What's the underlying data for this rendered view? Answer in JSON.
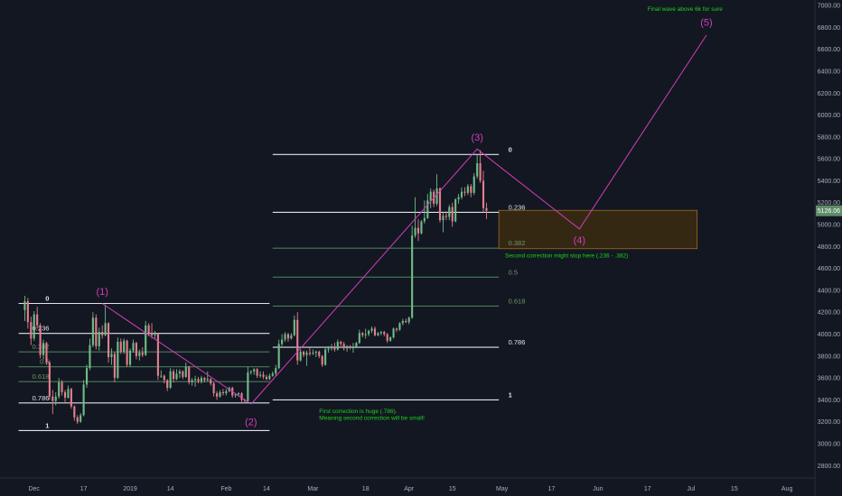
{
  "chart_data": {
    "type": "candlestick",
    "instrument": "BTC",
    "price_axis": {
      "ticks": [
        "2800.00",
        "3000.00",
        "3200.00",
        "3400.00",
        "3600.00",
        "3800.00",
        "4000.00",
        "4200.00",
        "4400.00",
        "4600.00",
        "4800.00",
        "5000.00",
        "5200.00",
        "5400.00",
        "5600.00",
        "5800.00",
        "6000.00",
        "6200.00",
        "6400.00",
        "6600.00",
        "6800.00",
        "7000.00"
      ],
      "tick_values": [
        2800,
        3000,
        3200,
        3400,
        3600,
        3800,
        4000,
        4200,
        4400,
        4600,
        4800,
        5000,
        5200,
        5400,
        5600,
        5800,
        6000,
        6200,
        6400,
        6600,
        6800,
        7000
      ],
      "ylim": [
        2720,
        7050
      ],
      "last_price": "5126.06",
      "last_price_value": 5126.06
    },
    "time_axis": {
      "labels": [
        "Dec",
        "17",
        "2019",
        "14",
        "Feb",
        "14",
        "Mar",
        "18",
        "Apr",
        "15",
        "May",
        "17",
        "Jun",
        "17",
        "Jul",
        "15",
        "Aug"
      ],
      "label_dates": [
        "2018-12-01",
        "2018-12-17",
        "2019-01-01",
        "2019-01-14",
        "2019-02-01",
        "2019-02-14",
        "2019-03-01",
        "2019-03-18",
        "2019-04-01",
        "2019-04-15",
        "2019-05-01",
        "2019-05-17",
        "2019-06-01",
        "2019-06-17",
        "2019-07-01",
        "2019-07-15",
        "2019-08-01"
      ],
      "xlim": [
        "2018-11-20",
        "2019-08-10"
      ]
    },
    "candles": [
      [
        "2018-11-28",
        4220,
        4350,
        4120,
        4300
      ],
      [
        "2018-11-29",
        4300,
        4330,
        4050,
        4110
      ],
      [
        "2018-11-30",
        4110,
        4160,
        3900,
        3960
      ],
      [
        "2018-12-01",
        3960,
        4210,
        3940,
        4180
      ],
      [
        "2018-12-02",
        4180,
        4250,
        4050,
        4080
      ],
      [
        "2018-12-03",
        4080,
        4100,
        3780,
        3810
      ],
      [
        "2018-12-04",
        3810,
        3950,
        3770,
        3920
      ],
      [
        "2018-12-05",
        3920,
        3930,
        3720,
        3740
      ],
      [
        "2018-12-06",
        3740,
        3760,
        3400,
        3430
      ],
      [
        "2018-12-07",
        3430,
        3490,
        3270,
        3390
      ],
      [
        "2018-12-08",
        3390,
        3470,
        3350,
        3430
      ],
      [
        "2018-12-09",
        3430,
        3600,
        3410,
        3560
      ],
      [
        "2018-12-10",
        3560,
        3580,
        3440,
        3470
      ],
      [
        "2018-12-11",
        3470,
        3490,
        3380,
        3420
      ],
      [
        "2018-12-12",
        3420,
        3530,
        3410,
        3500
      ],
      [
        "2018-12-13",
        3500,
        3510,
        3320,
        3340
      ],
      [
        "2018-12-14",
        3340,
        3350,
        3210,
        3240
      ],
      [
        "2018-12-15",
        3240,
        3260,
        3180,
        3200
      ],
      [
        "2018-12-16",
        3200,
        3280,
        3190,
        3260
      ],
      [
        "2018-12-17",
        3260,
        3580,
        3250,
        3540
      ],
      [
        "2018-12-18",
        3540,
        3720,
        3510,
        3690
      ],
      [
        "2018-12-19",
        3690,
        3960,
        3670,
        3900
      ],
      [
        "2018-12-20",
        3900,
        4200,
        3880,
        4150
      ],
      [
        "2018-12-21",
        4150,
        4180,
        3860,
        3890
      ],
      [
        "2018-12-22",
        3890,
        4060,
        3850,
        4020
      ],
      [
        "2018-12-23",
        4020,
        4080,
        3960,
        3990
      ],
      [
        "2018-12-24",
        3990,
        4270,
        3980,
        4100
      ],
      [
        "2018-12-25",
        4100,
        4110,
        3740,
        3790
      ],
      [
        "2018-12-26",
        3790,
        3870,
        3720,
        3820
      ],
      [
        "2018-12-27",
        3820,
        3840,
        3560,
        3600
      ],
      [
        "2018-12-28",
        3600,
        3970,
        3590,
        3930
      ],
      [
        "2018-12-29",
        3930,
        3960,
        3820,
        3840
      ],
      [
        "2018-12-30",
        3840,
        3960,
        3820,
        3940
      ],
      [
        "2018-12-31",
        3940,
        3950,
        3700,
        3720
      ],
      [
        "2019-01-01",
        3720,
        3870,
        3700,
        3850
      ],
      [
        "2019-01-02",
        3850,
        3950,
        3830,
        3920
      ],
      [
        "2019-01-03",
        3920,
        3930,
        3770,
        3800
      ],
      [
        "2019-01-04",
        3800,
        3860,
        3760,
        3830
      ],
      [
        "2019-01-05",
        3830,
        3880,
        3790,
        3810
      ],
      [
        "2019-01-06",
        3810,
        4120,
        3800,
        4080
      ],
      [
        "2019-01-07",
        4080,
        4100,
        3980,
        4000
      ],
      [
        "2019-01-08",
        4000,
        4100,
        3960,
        3990
      ],
      [
        "2019-01-09",
        3990,
        4030,
        3960,
        4000
      ],
      [
        "2019-01-10",
        4000,
        4010,
        3580,
        3620
      ],
      [
        "2019-01-11",
        3620,
        3670,
        3600,
        3620
      ],
      [
        "2019-01-12",
        3620,
        3630,
        3550,
        3580
      ],
      [
        "2019-01-13",
        3580,
        3590,
        3480,
        3510
      ],
      [
        "2019-01-14",
        3510,
        3690,
        3500,
        3660
      ],
      [
        "2019-01-15",
        3660,
        3680,
        3560,
        3590
      ],
      [
        "2019-01-16",
        3590,
        3680,
        3580,
        3640
      ],
      [
        "2019-01-17",
        3640,
        3680,
        3600,
        3660
      ],
      [
        "2019-01-18",
        3660,
        3670,
        3590,
        3610
      ],
      [
        "2019-01-19",
        3610,
        3740,
        3600,
        3700
      ],
      [
        "2019-01-20",
        3700,
        3710,
        3540,
        3560
      ],
      [
        "2019-01-21",
        3560,
        3600,
        3530,
        3580
      ],
      [
        "2019-01-22",
        3580,
        3620,
        3520,
        3590
      ],
      [
        "2019-01-23",
        3590,
        3610,
        3550,
        3570
      ],
      [
        "2019-01-24",
        3570,
        3620,
        3550,
        3600
      ],
      [
        "2019-01-25",
        3600,
        3610,
        3560,
        3580
      ],
      [
        "2019-01-26",
        3580,
        3660,
        3570,
        3590
      ],
      [
        "2019-01-27",
        3590,
        3600,
        3530,
        3550
      ],
      [
        "2019-01-28",
        3550,
        3560,
        3430,
        3460
      ],
      [
        "2019-01-29",
        3460,
        3480,
        3400,
        3430
      ],
      [
        "2019-01-30",
        3430,
        3490,
        3420,
        3470
      ],
      [
        "2019-01-31",
        3470,
        3500,
        3440,
        3460
      ],
      [
        "2019-02-01",
        3460,
        3500,
        3440,
        3480
      ],
      [
        "2019-02-02",
        3480,
        3520,
        3470,
        3510
      ],
      [
        "2019-02-03",
        3510,
        3520,
        3420,
        3440
      ],
      [
        "2019-02-04",
        3440,
        3460,
        3420,
        3450
      ],
      [
        "2019-02-05",
        3450,
        3470,
        3430,
        3460
      ],
      [
        "2019-02-06",
        3460,
        3470,
        3380,
        3400
      ],
      [
        "2019-02-07",
        3400,
        3410,
        3380,
        3390
      ],
      [
        "2019-02-08",
        3390,
        3700,
        3380,
        3650
      ],
      [
        "2019-02-09",
        3650,
        3670,
        3630,
        3660
      ],
      [
        "2019-02-10",
        3660,
        3690,
        3630,
        3680
      ],
      [
        "2019-02-11",
        3680,
        3690,
        3600,
        3620
      ],
      [
        "2019-02-12",
        3620,
        3660,
        3600,
        3630
      ],
      [
        "2019-02-13",
        3630,
        3660,
        3590,
        3610
      ],
      [
        "2019-02-14",
        3610,
        3630,
        3580,
        3590
      ],
      [
        "2019-02-15",
        3590,
        3640,
        3580,
        3620
      ],
      [
        "2019-02-16",
        3620,
        3660,
        3610,
        3640
      ],
      [
        "2019-02-17",
        3640,
        3720,
        3620,
        3690
      ],
      [
        "2019-02-18",
        3690,
        3950,
        3680,
        3910
      ],
      [
        "2019-02-19",
        3910,
        4000,
        3890,
        3950
      ],
      [
        "2019-02-20",
        3950,
        4020,
        3930,
        4000
      ],
      [
        "2019-02-21",
        4000,
        4010,
        3930,
        3960
      ],
      [
        "2019-02-22",
        3960,
        4010,
        3950,
        3990
      ],
      [
        "2019-02-23",
        3990,
        4170,
        3980,
        4130
      ],
      [
        "2019-02-24",
        4130,
        4200,
        3720,
        3760
      ],
      [
        "2019-02-25",
        3760,
        3860,
        3750,
        3840
      ],
      [
        "2019-02-26",
        3840,
        3850,
        3790,
        3810
      ],
      [
        "2019-02-27",
        3810,
        3850,
        3710,
        3830
      ],
      [
        "2019-02-28",
        3830,
        3880,
        3800,
        3820
      ],
      [
        "2019-03-01",
        3820,
        3860,
        3810,
        3830
      ],
      [
        "2019-03-02",
        3830,
        3850,
        3790,
        3840
      ],
      [
        "2019-03-03",
        3840,
        3850,
        3780,
        3800
      ],
      [
        "2019-03-04",
        3800,
        3810,
        3700,
        3720
      ],
      [
        "2019-03-05",
        3720,
        3880,
        3710,
        3860
      ],
      [
        "2019-03-06",
        3860,
        3890,
        3830,
        3870
      ],
      [
        "2019-03-07",
        3870,
        3910,
        3850,
        3880
      ],
      [
        "2019-03-08",
        3880,
        3920,
        3840,
        3860
      ],
      [
        "2019-03-09",
        3860,
        3950,
        3850,
        3930
      ],
      [
        "2019-03-10",
        3930,
        3940,
        3890,
        3910
      ],
      [
        "2019-03-11",
        3910,
        3930,
        3850,
        3870
      ],
      [
        "2019-03-12",
        3870,
        3900,
        3840,
        3890
      ],
      [
        "2019-03-13",
        3890,
        3900,
        3860,
        3880
      ],
      [
        "2019-03-14",
        3880,
        3920,
        3830,
        3880
      ],
      [
        "2019-03-15",
        3880,
        3930,
        3870,
        3920
      ],
      [
        "2019-03-16",
        3920,
        4040,
        3910,
        4010
      ],
      [
        "2019-03-17",
        4010,
        4020,
        3970,
        3990
      ],
      [
        "2019-03-18",
        3990,
        4050,
        3960,
        4000
      ],
      [
        "2019-03-19",
        4000,
        4040,
        3980,
        4030
      ],
      [
        "2019-03-20",
        4030,
        4070,
        4010,
        4050
      ],
      [
        "2019-03-21",
        4050,
        4070,
        3980,
        3990
      ],
      [
        "2019-03-22",
        3990,
        4020,
        3980,
        4010
      ],
      [
        "2019-03-23",
        4010,
        4030,
        3990,
        4020
      ],
      [
        "2019-03-24",
        4020,
        4030,
        3980,
        4000
      ],
      [
        "2019-03-25",
        4000,
        4010,
        3920,
        3940
      ],
      [
        "2019-03-26",
        3940,
        3980,
        3930,
        3970
      ],
      [
        "2019-03-27",
        3970,
        4060,
        3960,
        4050
      ],
      [
        "2019-03-28",
        4050,
        4060,
        4020,
        4040
      ],
      [
        "2019-03-29",
        4040,
        4110,
        4030,
        4100
      ],
      [
        "2019-03-30",
        4100,
        4140,
        4080,
        4120
      ],
      [
        "2019-03-31",
        4120,
        4140,
        4100,
        4110
      ],
      [
        "2019-04-01",
        4110,
        4160,
        4090,
        4150
      ],
      [
        "2019-04-02",
        4150,
        4990,
        4140,
        4900
      ],
      [
        "2019-04-03",
        4900,
        5250,
        4880,
        4970
      ],
      [
        "2019-04-04",
        4970,
        5050,
        4850,
        4920
      ],
      [
        "2019-04-05",
        4920,
        5040,
        4910,
        5030
      ],
      [
        "2019-04-06",
        5030,
        5220,
        5010,
        5060
      ],
      [
        "2019-04-07",
        5060,
        5280,
        5050,
        5220
      ],
      [
        "2019-04-08",
        5220,
        5330,
        5150,
        5300
      ],
      [
        "2019-04-09",
        5300,
        5320,
        5160,
        5190
      ],
      [
        "2019-04-10",
        5190,
        5460,
        5170,
        5330
      ],
      [
        "2019-04-11",
        5330,
        5340,
        5020,
        5040
      ],
      [
        "2019-04-12",
        5040,
        5120,
        4930,
        5080
      ],
      [
        "2019-04-13",
        5080,
        5120,
        5040,
        5070
      ],
      [
        "2019-04-14",
        5070,
        5180,
        5040,
        5160
      ],
      [
        "2019-04-15",
        5160,
        5200,
        4980,
        5030
      ],
      [
        "2019-04-16",
        5030,
        5240,
        5020,
        5230
      ],
      [
        "2019-04-17",
        5230,
        5280,
        5190,
        5250
      ],
      [
        "2019-04-18",
        5250,
        5340,
        5230,
        5300
      ],
      [
        "2019-04-19",
        5300,
        5340,
        5260,
        5290
      ],
      [
        "2019-04-20",
        5290,
        5370,
        5270,
        5350
      ],
      [
        "2019-04-21",
        5350,
        5370,
        5250,
        5290
      ],
      [
        "2019-04-22",
        5290,
        5470,
        5270,
        5440
      ],
      [
        "2019-04-23",
        5440,
        5640,
        5420,
        5560
      ],
      [
        "2019-04-24",
        5560,
        5680,
        5380,
        5400
      ],
      [
        "2019-04-25",
        5400,
        5490,
        5110,
        5150
      ],
      [
        "2019-04-26",
        5150,
        5200,
        5050,
        5126.06
      ]
    ],
    "fib_retracements": [
      {
        "levels": [
          {
            "label": "0",
            "value": 4280
          },
          {
            "label": "0.236",
            "value": 4007
          },
          {
            "label": "0.382",
            "value": 3838
          },
          {
            "label": "0.5",
            "value": 3702
          },
          {
            "label": "0.618",
            "value": 3566
          },
          {
            "label": "0.786",
            "value": 3372
          },
          {
            "label": "1",
            "value": 3120
          }
        ],
        "range": [
          "2018-11-26",
          "2019-02-15"
        ],
        "label_date": "2018-11-21"
      },
      {
        "levels": [
          {
            "label": "0",
            "value": 5640
          },
          {
            "label": "0.236",
            "value": 5112
          },
          {
            "label": "0.382",
            "value": 4785
          },
          {
            "label": "0.5",
            "value": 4520
          },
          {
            "label": "0.618",
            "value": 4256
          },
          {
            "label": "0.786",
            "value": 3880
          },
          {
            "label": "1",
            "value": 3400
          }
        ],
        "range": [
          "2019-02-16",
          "2019-04-30"
        ],
        "label_date": "2019-05-01"
      }
    ],
    "fib_colors": {
      "0": "#e0e3eb",
      "0.236": "#e0e3eb",
      "0.382": "#4a7c59",
      "0.5": "#4a7c59",
      "0.618": "#4a7c59",
      "0.786": "#e0e3eb",
      "1": "#e0e3eb"
    },
    "fib_label_colors": {
      "0": "#e0e3eb",
      "0.236": "#e0e3eb",
      "0.382": "#6e9a5f",
      "0.5": "#6e9a5f",
      "0.618": "#6e9a5f",
      "0.786": "#e0e3eb",
      "1": "#e0e3eb"
    },
    "wave_path": [
      {
        "date": "2019-02-09",
        "value": 3360
      },
      {
        "date": "2019-04-23",
        "value": 5690
      },
      {
        "date": "2019-05-26",
        "value": 4960
      },
      {
        "date": "2019-07-06",
        "value": 6730
      }
    ],
    "wave1_path": [
      {
        "date": "2018-12-23",
        "value": 4280
      },
      {
        "date": "2019-02-08",
        "value": 3380
      }
    ],
    "wave_labels": [
      {
        "label": "(1)",
        "date": "2018-12-23",
        "value": 4390
      },
      {
        "label": "(2)",
        "date": "2019-02-09",
        "value": 3200
      },
      {
        "label": "(3)",
        "date": "2019-04-23",
        "value": 5800
      },
      {
        "label": "(4)",
        "date": "2019-05-26",
        "value": 4860
      },
      {
        "label": "(5)",
        "date": "2019-07-06",
        "value": 6850
      }
    ],
    "target_box": {
      "date_start": "2019-04-30",
      "date_end": "2019-07-03",
      "top": 5130,
      "bottom": 4780
    },
    "annotations": [
      {
        "text": "Final wave above 6k for sure",
        "date": "2019-06-17",
        "value": 6950,
        "align": "start"
      },
      {
        "text": "Second correction might stop here (.236 - .382)",
        "date": "2019-05-02",
        "value": 4700,
        "align": "start"
      },
      {
        "text": "First correction is huge (.786).",
        "date": "2019-03-03",
        "value": 3280,
        "align": "start"
      },
      {
        "text": "Meaning second correction will be small!",
        "date": "2019-03-03",
        "value": 3220,
        "align": "start"
      }
    ],
    "colors": {
      "background": "#131722",
      "up": "#6fbb86",
      "down": "#e37e8e",
      "wave": "#d43dbb",
      "annotation": "#19d619",
      "box_fill": "#3a2a12",
      "box_stroke": "#9c6a24",
      "price_tag": "#5f8c68"
    }
  }
}
